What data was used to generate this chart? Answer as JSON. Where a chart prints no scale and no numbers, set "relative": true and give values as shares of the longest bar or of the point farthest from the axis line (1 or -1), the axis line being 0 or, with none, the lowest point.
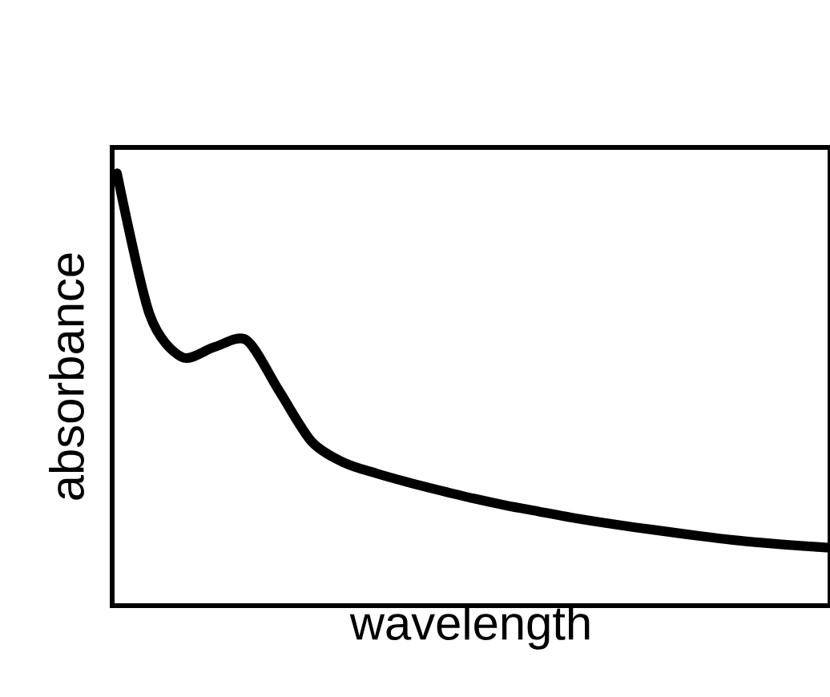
{
  "chart_data": {
    "type": "line",
    "relative": true,
    "xlabel": "wavelength",
    "ylabel": "absorbance",
    "color": "#000000",
    "categories": [
      null,
      null,
      null,
      null,
      null,
      null,
      null,
      null,
      null,
      null,
      null,
      null,
      null,
      null,
      null,
      null,
      null,
      null,
      null,
      null,
      null,
      null,
      null
    ],
    "values": [
      1.0,
      0.675,
      0.575,
      0.598,
      0.614,
      0.497,
      0.38,
      0.331,
      0.306,
      0.285,
      0.266,
      0.248,
      0.232,
      0.218,
      0.204,
      0.192,
      0.181,
      0.171,
      0.161,
      0.152,
      0.145,
      0.139,
      0.134
    ]
  }
}
